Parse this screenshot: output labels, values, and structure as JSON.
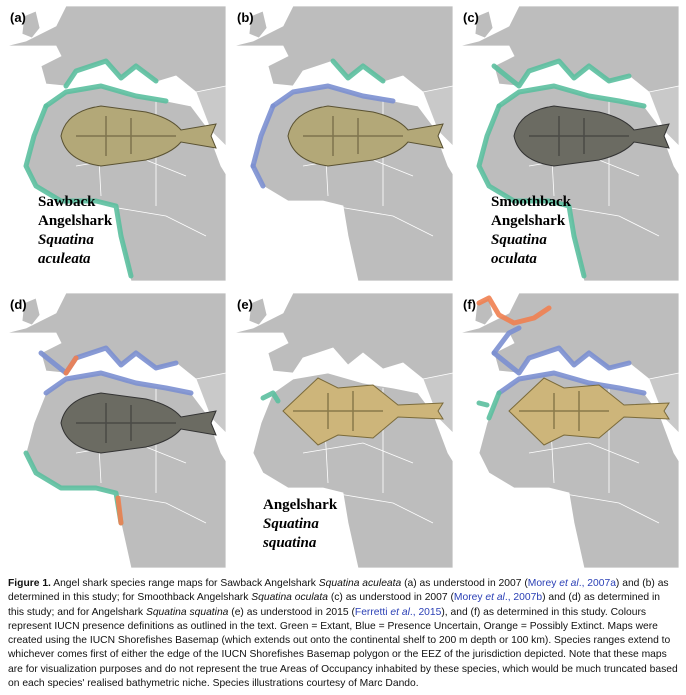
{
  "panels": [
    {
      "label": "(a)",
      "name": [
        "Sawback",
        "Angelshark"
      ],
      "latin": [
        "Squatina",
        "aculeata"
      ]
    },
    {
      "label": "(b)"
    },
    {
      "label": "(c)",
      "name": [
        "Smoothback",
        "Angelshark"
      ],
      "latin": [
        "Squatina",
        "oculata"
      ]
    },
    {
      "label": "(d)"
    },
    {
      "label": "(e)",
      "name": [
        "Angelshark"
      ],
      "latin": [
        "Squatina",
        "squatina"
      ]
    },
    {
      "label": "(f)"
    }
  ],
  "caption": {
    "label": "Figure 1.",
    "parts": [
      {
        "text": " Angel shark species range maps for Sawback Angelshark ",
        "style": "plain"
      },
      {
        "text": "Squatina aculeata",
        "style": "italic"
      },
      {
        "text": " (a) as understood in 2007 (",
        "style": "plain"
      },
      {
        "text": "Morey ",
        "style": "link"
      },
      {
        "text": "et al",
        "style": "link-italic"
      },
      {
        "text": "., 2007a",
        "style": "link"
      },
      {
        "text": ") and (b) as determined in this study; for Smoothback Angelshark ",
        "style": "plain"
      },
      {
        "text": "Squatina oculata",
        "style": "italic"
      },
      {
        "text": " (c) as understood in 2007 (",
        "style": "plain"
      },
      {
        "text": "Morey ",
        "style": "link"
      },
      {
        "text": "et al",
        "style": "link-italic"
      },
      {
        "text": "., 2007b",
        "style": "link"
      },
      {
        "text": ") and (d) as determined in this study; and for Angelshark ",
        "style": "plain"
      },
      {
        "text": "Squatina squatina",
        "style": "italic"
      },
      {
        "text": " (e) as understood in 2015 (",
        "style": "plain"
      },
      {
        "text": "Ferretti ",
        "style": "link"
      },
      {
        "text": "et al",
        "style": "link-italic"
      },
      {
        "text": "., 2015",
        "style": "link"
      },
      {
        "text": "), and (f) as determined in this study. Colours represent IUCN presence definitions as outlined in the text. Green = Extant, Blue = Presence Uncertain, Orange = Possibly Extinct. Maps were created using the IUCN Shorefishes Basemap (which extends out onto the continental shelf to 200 m depth or 100 km). Species ranges extend to whichever comes first of either the edge of the IUCN Shorefishes Basemap polygon or the EEZ of the jurisdiction depicted. Note that these maps are for visualization purposes and do not represent the true Areas of Occupancy inhabited by these species, which would be much truncated based on each species' realised bathymetric niche. Species illustrations courtesy of Marc Dando.",
        "style": "plain"
      }
    ]
  }
}
